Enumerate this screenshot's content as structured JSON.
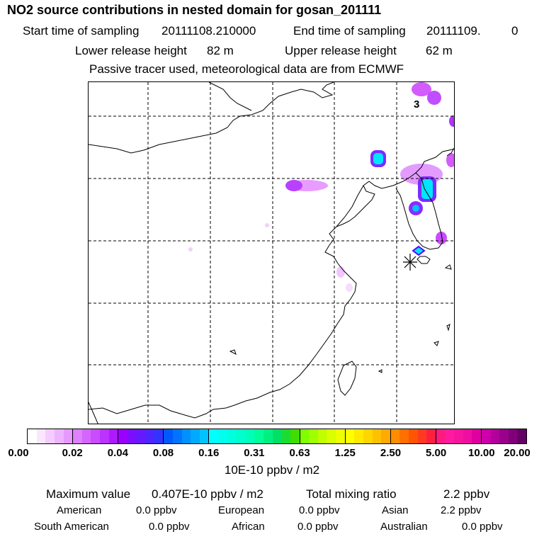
{
  "header": {
    "title": "NO2 source contributions in nested domain for gosan_201111",
    "start_label": "Start time of sampling",
    "start_value": "20111108.210000",
    "end_label": "End time of sampling",
    "end_value": "20111109.",
    "end_extra": "0",
    "lower_label": "Lower release height",
    "lower_value": "82 m",
    "upper_label": "Upper release height",
    "upper_value": "62 m",
    "note": "Passive tracer used, meteorological data are from ECMWF"
  },
  "map": {
    "marker_label": "3",
    "station_symbol": "asterisk"
  },
  "colorbar": {
    "ticks": [
      "0.00",
      "0.02",
      "0.04",
      "0.08",
      "0.16",
      "0.31",
      "0.63",
      "1.25",
      "2.50",
      "5.00",
      "10.00",
      "20.00"
    ],
    "segments": [
      [
        "#ffffff",
        "#fbe6ff",
        "#f5ccff",
        "#eeb3ff",
        "#e699ff"
      ],
      [
        "#de80ff",
        "#d466ff",
        "#c94dff",
        "#bb33ff",
        "#ad1aff"
      ],
      [
        "#9900ff",
        "#7d0dff",
        "#6619ff",
        "#4d26ff",
        "#3333ff"
      ],
      [
        "#0059ff",
        "#0073ff",
        "#0090ff",
        "#00aaff",
        "#00c4ff"
      ],
      [
        "#00ffff",
        "#00ffee",
        "#00ffdd",
        "#00ffcc",
        "#00ffbb"
      ],
      [
        "#00ff99",
        "#00f080",
        "#00e066",
        "#1add33",
        "#40dd00"
      ],
      [
        "#80ff00",
        "#a0ff00",
        "#bfff00",
        "#d9ff00",
        "#eeff00"
      ],
      [
        "#ffff00",
        "#ffea00",
        "#ffd500",
        "#ffc000",
        "#ffaa00"
      ],
      [
        "#ff8c00",
        "#ff7000",
        "#ff5500",
        "#ff3a20",
        "#ff2040"
      ],
      [
        "#ff1a80",
        "#ff1aa0",
        "#f7149e",
        "#ee0ea0",
        "#e000a0"
      ],
      [
        "#cc00aa",
        "#b3009c",
        "#99008c",
        "#80007a",
        "#660066"
      ]
    ],
    "units": "10E-10 ppbv / m2"
  },
  "summary": {
    "max_label": "Maximum value",
    "max_value": "0.407E-10 ppbv / m2",
    "total_label": "Total mixing ratio",
    "total_value": "2.2 ppbv",
    "regions": [
      {
        "name": "American",
        "value": "0.0 ppbv"
      },
      {
        "name": "European",
        "value": "0.0 ppbv"
      },
      {
        "name": "Asian",
        "value": "2.2 ppbv"
      },
      {
        "name": "South American",
        "value": "0.0 ppbv"
      },
      {
        "name": "African",
        "value": "0.0 ppbv"
      },
      {
        "name": "Australian",
        "value": "0.0 ppbv"
      }
    ]
  }
}
